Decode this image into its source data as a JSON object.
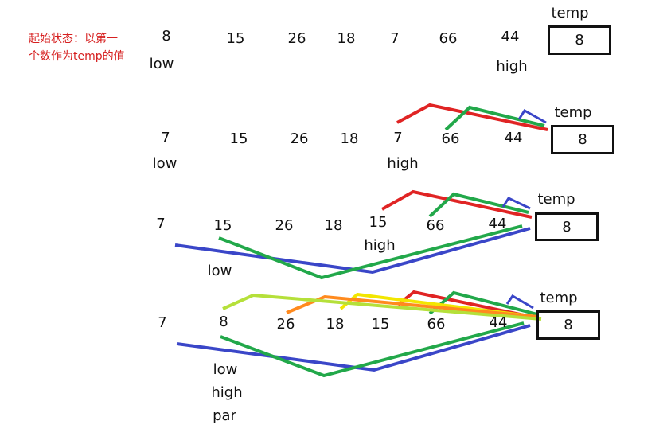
{
  "annotation": {
    "line1": "起始状态：以第一",
    "line2": "个数作为temp的值"
  },
  "stroke_colors": {
    "red": "#e02424",
    "green": "#22a84a",
    "blue": "#3a46c8",
    "orange": "#ff8a1e",
    "yellow": "#f2e600",
    "lime": "#b5e03a"
  },
  "rows": [
    {
      "values": [
        "8",
        "15",
        "26",
        "18",
        "7",
        "66",
        "44"
      ],
      "temp_label": "temp",
      "temp_value": "8",
      "pointers": [
        "low",
        "high"
      ]
    },
    {
      "values": [
        "7",
        "15",
        "26",
        "18",
        "7",
        "66",
        "44"
      ],
      "temp_label": "temp",
      "temp_value": "8",
      "pointers": [
        "low",
        "high"
      ]
    },
    {
      "values": [
        "7",
        "15",
        "26",
        "18",
        "15",
        "66",
        "44"
      ],
      "temp_label": "temp",
      "temp_value": "8",
      "pointers": [
        "low",
        "high"
      ]
    },
    {
      "values": [
        "7",
        "8",
        "26",
        "18",
        "15",
        "66",
        "44"
      ],
      "temp_label": "temp",
      "temp_value": "8",
      "pointers": [
        "low",
        "high",
        "par"
      ]
    }
  ]
}
